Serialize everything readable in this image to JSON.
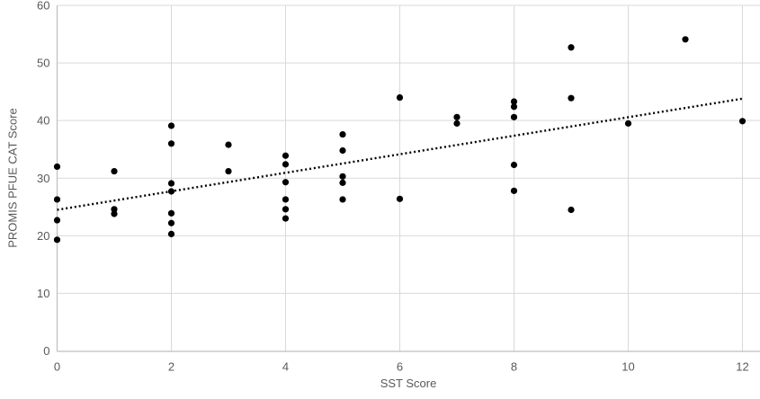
{
  "chart_data": {
    "type": "scatter",
    "title": "",
    "xlabel": "SST Score",
    "ylabel": "PROMIS PFUE CAT Score",
    "xlim": [
      0,
      12
    ],
    "ylim": [
      0,
      60
    ],
    "x_ticks": [
      0,
      2,
      4,
      6,
      8,
      10,
      12
    ],
    "y_ticks": [
      0,
      10,
      20,
      30,
      40,
      50,
      60
    ],
    "grid": "both",
    "legend": "none",
    "marker_color": "#000000",
    "trendline_color": "#000000",
    "gridline_color": "#d9d9d9",
    "axis_line_color": "#bfbfbf",
    "tick_label_color": "#595959",
    "points": [
      [
        0,
        32.0
      ],
      [
        0,
        26.3
      ],
      [
        0,
        22.7
      ],
      [
        0,
        19.3
      ],
      [
        1,
        31.2
      ],
      [
        1,
        24.6
      ],
      [
        1,
        23.8
      ],
      [
        2,
        39.1
      ],
      [
        2,
        36.0
      ],
      [
        2,
        29.1
      ],
      [
        2,
        27.7
      ],
      [
        2,
        23.9
      ],
      [
        2,
        22.2
      ],
      [
        2,
        20.3
      ],
      [
        3,
        35.8
      ],
      [
        3,
        31.2
      ],
      [
        4,
        33.9
      ],
      [
        4,
        32.4
      ],
      [
        4,
        29.3
      ],
      [
        4,
        26.3
      ],
      [
        4,
        24.6
      ],
      [
        4,
        23.0
      ],
      [
        5,
        37.6
      ],
      [
        5,
        34.8
      ],
      [
        5,
        30.3
      ],
      [
        5,
        29.2
      ],
      [
        5,
        26.3
      ],
      [
        6,
        44.0
      ],
      [
        6,
        26.4
      ],
      [
        7,
        40.6
      ],
      [
        7,
        39.5
      ],
      [
        8,
        43.3
      ],
      [
        8,
        42.4
      ],
      [
        8,
        40.6
      ],
      [
        8,
        32.3
      ],
      [
        8,
        27.8
      ],
      [
        9,
        52.7
      ],
      [
        9,
        43.9
      ],
      [
        9,
        24.5
      ],
      [
        10,
        39.5
      ],
      [
        11,
        54.1
      ],
      [
        12,
        39.9
      ]
    ],
    "trendline": {
      "style": "dotted",
      "x1": 0,
      "y1": 24.5,
      "x2": 12,
      "y2": 43.8
    }
  }
}
